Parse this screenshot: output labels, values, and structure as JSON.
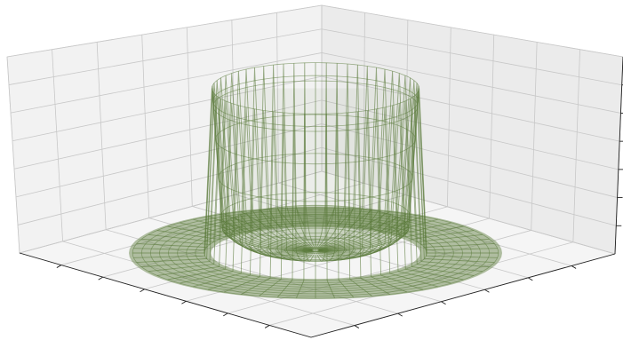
{
  "chart_data": {
    "type": "surface3d",
    "title": "",
    "xlabel": "",
    "ylabel": "",
    "zlabel": "",
    "grid": true,
    "tick_labels_visible": false,
    "surface": {
      "shape": "radial bowl: flat annulus at base with steep vertical walls rising near the inner radius",
      "style": "wireframe with translucent fill",
      "color": "#5a7a3a",
      "rings": 20,
      "spokes": 60
    },
    "pane_color": "#f2f2f2",
    "grid_color": "#c8c8c8"
  }
}
